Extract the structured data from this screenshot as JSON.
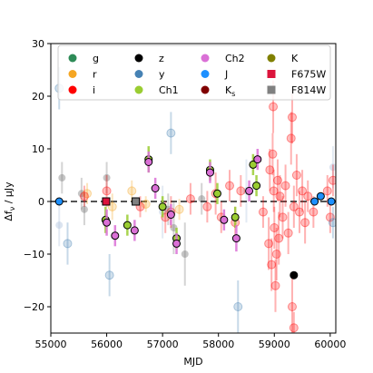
{
  "chart_data": {
    "type": "scatter",
    "title": "",
    "xlabel": "MJD",
    "ylabel": "Δfν / μJy",
    "ylabel_parts": {
      "base": "Δf",
      "sub": "ν",
      "unit": " / μJy"
    },
    "xlim": [
      55000,
      60100
    ],
    "ylim": [
      -25,
      30
    ],
    "xticks": [
      55000,
      56000,
      57000,
      58000,
      59000,
      60000
    ],
    "xtick_labels": [
      "55000",
      "56000",
      "57000",
      "58000",
      "59000",
      "60000"
    ],
    "yticks": [
      -20,
      -10,
      0,
      10,
      20,
      30
    ],
    "ytick_labels": [
      "−20",
      "−10",
      "0",
      "10",
      "20",
      "30"
    ],
    "zero_line": {
      "y": 0,
      "style": "dashed",
      "color": "#555555"
    },
    "grid": false,
    "legend": {
      "placement": "top",
      "columns": 4
    },
    "series": [
      {
        "name": "g",
        "color": "#2e8b57",
        "marker": "circle",
        "points": []
      },
      {
        "name": "r",
        "color": "#f5a623",
        "marker": "circle",
        "points": [
          {
            "x": 55650,
            "y": 1.5,
            "err": 2
          },
          {
            "x": 56100,
            "y": -1,
            "err": 2.5
          },
          {
            "x": 56450,
            "y": 2,
            "err": 2
          },
          {
            "x": 56700,
            "y": -0.5,
            "err": 1.5
          },
          {
            "x": 57300,
            "y": -1.5,
            "err": 2
          }
        ]
      },
      {
        "name": "i",
        "color": "#ff0000",
        "marker": "circle",
        "points": [
          {
            "x": 55600,
            "y": 1,
            "err": 2
          },
          {
            "x": 56000,
            "y": 2,
            "err": 3
          },
          {
            "x": 56600,
            "y": -1,
            "err": 2
          },
          {
            "x": 57050,
            "y": -3,
            "err": 3
          },
          {
            "x": 57150,
            "y": -2,
            "err": 3
          },
          {
            "x": 57500,
            "y": 0.5,
            "err": 3
          },
          {
            "x": 57800,
            "y": -1,
            "err": 3
          },
          {
            "x": 57950,
            "y": 1.5,
            "err": 4
          },
          {
            "x": 58050,
            "y": -3,
            "err": 3
          },
          {
            "x": 58200,
            "y": 3,
            "err": 3
          },
          {
            "x": 58300,
            "y": -4,
            "err": 3
          },
          {
            "x": 58400,
            "y": 2,
            "err": 3
          },
          {
            "x": 58800,
            "y": -2,
            "err": 3
          },
          {
            "x": 58900,
            "y": -8,
            "err": 5
          },
          {
            "x": 58920,
            "y": 6,
            "err": 4
          },
          {
            "x": 58950,
            "y": -12,
            "err": 5
          },
          {
            "x": 58970,
            "y": 9,
            "err": 4
          },
          {
            "x": 58990,
            "y": 2,
            "err": 4
          },
          {
            "x": 59000,
            "y": -5,
            "err": 4
          },
          {
            "x": 59020,
            "y": -16,
            "err": 5
          },
          {
            "x": 59040,
            "y": -10,
            "err": 5
          },
          {
            "x": 59060,
            "y": 4,
            "err": 4
          },
          {
            "x": 59080,
            "y": -7,
            "err": 5
          },
          {
            "x": 59100,
            "y": 1,
            "err": 4
          },
          {
            "x": 59150,
            "y": -3,
            "err": 4
          },
          {
            "x": 59200,
            "y": 3,
            "err": 4
          },
          {
            "x": 59250,
            "y": -6,
            "err": 4
          },
          {
            "x": 59300,
            "y": 12,
            "err": 5
          },
          {
            "x": 59320,
            "y": -20,
            "err": 6
          },
          {
            "x": 59350,
            "y": -1,
            "err": 4
          },
          {
            "x": 59400,
            "y": 5,
            "err": 4
          },
          {
            "x": 59450,
            "y": -2,
            "err": 4
          },
          {
            "x": 59500,
            "y": 2,
            "err": 4
          },
          {
            "x": 59550,
            "y": -4,
            "err": 4
          },
          {
            "x": 59600,
            "y": 1,
            "err": 3
          },
          {
            "x": 59700,
            "y": -2,
            "err": 3
          },
          {
            "x": 59950,
            "y": 2,
            "err": 3
          },
          {
            "x": 60000,
            "y": -3,
            "err": 3
          },
          {
            "x": 60050,
            "y": 4,
            "err": 3
          },
          {
            "x": 59350,
            "y": -24,
            "err": 3
          },
          {
            "x": 58980,
            "y": 18,
            "err": 5
          },
          {
            "x": 59320,
            "y": 16,
            "err": 5
          }
        ]
      },
      {
        "name": "z",
        "color": "#000000",
        "marker": "circle",
        "points": [
          {
            "x": 59350,
            "y": -14,
            "err": 0
          }
        ]
      },
      {
        "name": "y",
        "color": "#4682b4",
        "marker": "circle",
        "points": [
          {
            "x": 55150,
            "y": 21.5,
            "err": 4
          },
          {
            "x": 55300,
            "y": -8,
            "err": 4
          },
          {
            "x": 56050,
            "y": -14,
            "err": 4
          },
          {
            "x": 57150,
            "y": 13,
            "err": 4
          },
          {
            "x": 58350,
            "y": -20,
            "err": 5
          },
          {
            "x": 60050,
            "y": -4,
            "err": 3
          }
        ]
      },
      {
        "name": "Ch1",
        "color": "#9acd32",
        "marker": "circle",
        "points": [
          {
            "x": 55980,
            "y": -3.5,
            "err": 2.5
          },
          {
            "x": 56370,
            "y": -4.5,
            "err": 2
          },
          {
            "x": 56750,
            "y": 8,
            "err": 2.5
          },
          {
            "x": 57000,
            "y": -1,
            "err": 2
          },
          {
            "x": 57250,
            "y": -7,
            "err": 2
          },
          {
            "x": 57850,
            "y": 6,
            "err": 2
          },
          {
            "x": 57980,
            "y": 1.5,
            "err": 2
          },
          {
            "x": 58300,
            "y": -3,
            "err": 2
          },
          {
            "x": 58620,
            "y": 7,
            "err": 2
          },
          {
            "x": 58680,
            "y": 3,
            "err": 2
          }
        ]
      },
      {
        "name": "Ch2",
        "color": "#da70d6",
        "marker": "circle",
        "points": [
          {
            "x": 56000,
            "y": -4,
            "err": 2.5
          },
          {
            "x": 56150,
            "y": -6.5,
            "err": 2
          },
          {
            "x": 56500,
            "y": -5.5,
            "err": 2
          },
          {
            "x": 56750,
            "y": 7.5,
            "err": 2
          },
          {
            "x": 56870,
            "y": 2.5,
            "err": 2
          },
          {
            "x": 57150,
            "y": -2.5,
            "err": 2
          },
          {
            "x": 57250,
            "y": -8,
            "err": 2
          },
          {
            "x": 57850,
            "y": 5.5,
            "err": 2
          },
          {
            "x": 58100,
            "y": -3.5,
            "err": 2
          },
          {
            "x": 58320,
            "y": -7,
            "err": 2.5
          },
          {
            "x": 58550,
            "y": 2,
            "err": 2
          },
          {
            "x": 58700,
            "y": 8,
            "err": 2
          }
        ]
      },
      {
        "name": "J",
        "color": "#1e90ff",
        "marker": "circle",
        "points": [
          {
            "x": 55150,
            "y": 0,
            "err": 0
          },
          {
            "x": 59720,
            "y": 0,
            "err": 0
          },
          {
            "x": 59830,
            "y": 1,
            "err": 0
          },
          {
            "x": 60020,
            "y": 0,
            "err": 0
          }
        ]
      },
      {
        "name": "K_s",
        "color": "#800000",
        "marker": "circle",
        "points": []
      },
      {
        "name": "K",
        "color": "#808000",
        "marker": "circle",
        "points": []
      },
      {
        "name": "F675W",
        "color": "#dc143c",
        "marker": "square",
        "points": [
          {
            "x": 55990,
            "y": 0,
            "err": 0
          }
        ]
      },
      {
        "name": "F814W",
        "color": "#808080",
        "marker": "square",
        "points": [
          {
            "x": 56520,
            "y": 0,
            "err": 0
          }
        ]
      }
    ],
    "faint_points": [
      {
        "x": 55200,
        "y": 4.5,
        "err": 3,
        "color": "#808080"
      },
      {
        "x": 55150,
        "y": -4.5,
        "err": 4,
        "color": "#b0c4de"
      },
      {
        "x": 55550,
        "y": 1.5,
        "err": 3,
        "color": "#808080"
      },
      {
        "x": 55600,
        "y": -1.5,
        "err": 3,
        "color": "#808080"
      },
      {
        "x": 56000,
        "y": 4.5,
        "err": 3,
        "color": "#808080"
      },
      {
        "x": 57000,
        "y": -2,
        "err": 5,
        "color": "#b0c4de"
      },
      {
        "x": 57100,
        "y": -1.5,
        "err": 3,
        "color": "#808080"
      },
      {
        "x": 57200,
        "y": -5,
        "err": 5,
        "color": "#808080"
      },
      {
        "x": 57400,
        "y": -10,
        "err": 6,
        "color": "#808080"
      },
      {
        "x": 57700,
        "y": 0.5,
        "err": 3,
        "color": "#808080"
      },
      {
        "x": 58500,
        "y": 2,
        "err": 6,
        "color": "#b0c4de"
      },
      {
        "x": 60050,
        "y": 6.5,
        "err": 4,
        "color": "#b0c4de"
      }
    ]
  }
}
